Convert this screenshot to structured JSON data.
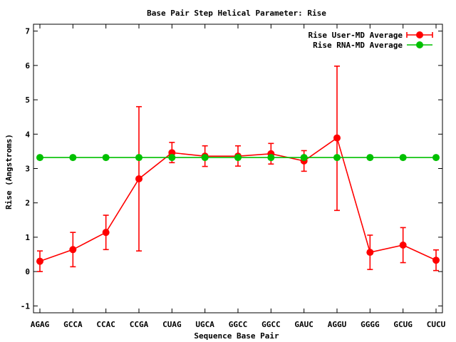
{
  "chart_data": {
    "type": "line",
    "title": "Base Pair Step Helical Parameter: Rise",
    "xlabel": "Sequence Base Pair",
    "ylabel": "Rise (Angstroms)",
    "ylim": [
      -1.2,
      7.2
    ],
    "yticks": [
      -1,
      0,
      1,
      2,
      3,
      4,
      5,
      6,
      7
    ],
    "categories": [
      "AGAG",
      "GCCA",
      "CCAC",
      "CCGA",
      "CUAG",
      "UGCA",
      "GGCC",
      "GGCC",
      "GAUC",
      "AGGU",
      "GGGG",
      "GCUG",
      "CUCU"
    ],
    "grid": false,
    "legend_position": "top-right",
    "series": [
      {
        "name": "Rise User-MD Average",
        "color": "#ff0000",
        "values": [
          0.3,
          0.64,
          1.14,
          2.7,
          3.46,
          3.36,
          3.36,
          3.43,
          3.22,
          3.89,
          0.56,
          0.77,
          0.33
        ],
        "err_low": [
          0.0,
          0.14,
          0.64,
          0.6,
          3.17,
          3.06,
          3.07,
          3.13,
          2.92,
          1.78,
          0.06,
          0.26,
          0.03
        ],
        "err_high": [
          0.6,
          1.14,
          1.64,
          4.8,
          3.76,
          3.66,
          3.66,
          3.73,
          3.52,
          5.98,
          1.06,
          1.28,
          0.63
        ]
      },
      {
        "name": "Rise RNA-MD Average",
        "color": "#00c000",
        "values": [
          3.32,
          3.32,
          3.32,
          3.32,
          3.32,
          3.32,
          3.32,
          3.32,
          3.32,
          3.32,
          3.32,
          3.32,
          3.32
        ]
      }
    ]
  }
}
